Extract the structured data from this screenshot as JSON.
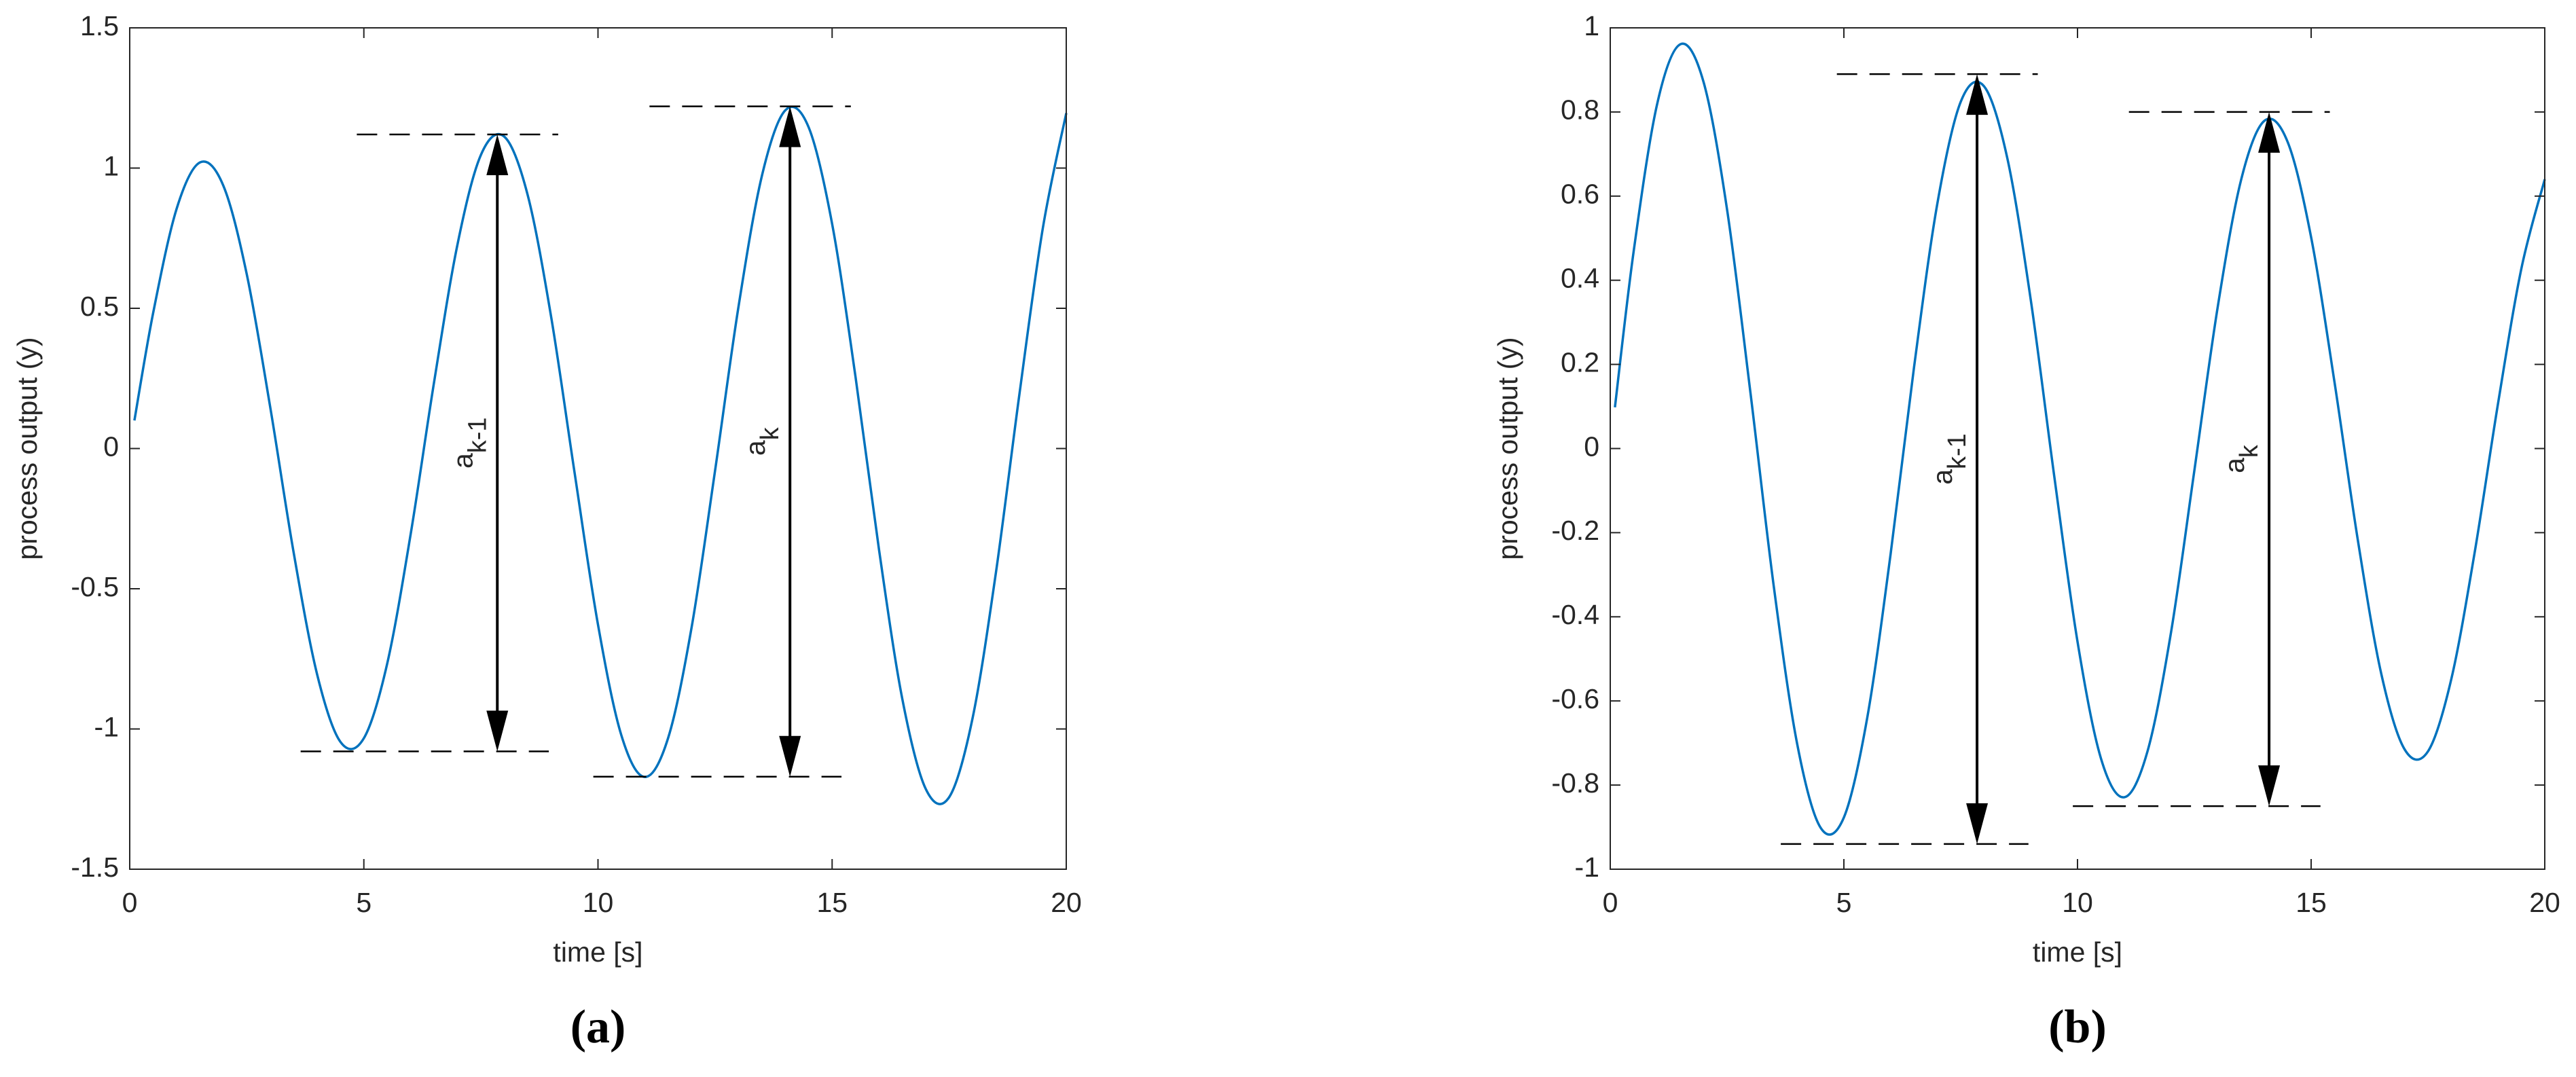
{
  "chart_data": [
    {
      "type": "line",
      "xlabel": "time [s]",
      "ylabel": "process output (y)",
      "caption": "(a)",
      "color": "#0072bd",
      "xlim": [
        0,
        20
      ],
      "ylim": [
        -1.5,
        1.5
      ],
      "xticks": [
        0,
        5,
        10,
        15,
        20
      ],
      "yticks": [
        -1.5,
        -1,
        -0.5,
        0,
        0.5,
        1,
        1.5
      ],
      "x": [
        0.1,
        0.5,
        1,
        1.5,
        2,
        2.5,
        3,
        3.5,
        4,
        4.5,
        5,
        5.5,
        6,
        6.5,
        7,
        7.5,
        8,
        8.5,
        9,
        9.5,
        10,
        10.5,
        11,
        11.5,
        12,
        12.5,
        13,
        13.5,
        14,
        14.5,
        15,
        15.5,
        16,
        16.5,
        17,
        17.5,
        18,
        18.5,
        19,
        19.5,
        20
      ],
      "values": [
        0.1,
        0.483,
        0.854,
        1.02,
        0.937,
        0.621,
        0.148,
        -0.37,
        -0.804,
        -1.046,
        -1.033,
        -0.766,
        -0.305,
        0.237,
        0.728,
        1.047,
        1.112,
        0.903,
        0.469,
        -0.086,
        -0.628,
        -1.023,
        -1.171,
        -1.031,
        -0.637,
        -0.079,
        0.505,
        0.972,
        1.206,
        1.145,
        0.801,
        0.255,
        -0.359,
        -0.894,
        -1.214,
        -1.243,
        -0.961,
        -0.44,
        0.194,
        0.786,
        1.196
      ],
      "annotations": [
        {
          "text": "a",
          "subscript": "k-1",
          "x": 7.85,
          "top": 1.12,
          "bottom": -1.08
        },
        {
          "text": "a",
          "subscript": "k",
          "x": 14.1,
          "top": 1.22,
          "bottom": -1.17
        }
      ]
    },
    {
      "type": "line",
      "xlabel": "time [s]",
      "ylabel": "process output (y)",
      "caption": "(b)",
      "color": "#0072bd",
      "xlim": [
        0,
        20
      ],
      "ylim": [
        -1,
        1
      ],
      "xticks": [
        0,
        5,
        10,
        15,
        20
      ],
      "yticks": [
        -1,
        -0.8,
        -0.6,
        -0.4,
        -0.2,
        0,
        0.2,
        0.4,
        0.6,
        0.8,
        1
      ],
      "x": [
        0.1,
        0.5,
        1,
        1.5,
        2,
        2.5,
        3,
        3.5,
        4,
        4.5,
        5,
        5.5,
        6,
        6.5,
        7,
        7.5,
        8,
        8.5,
        9,
        9.5,
        10,
        10.5,
        11,
        11.5,
        12,
        12.5,
        13,
        13.5,
        14,
        14.5,
        15,
        15.5,
        16,
        16.5,
        17,
        17.5,
        18,
        18.5,
        19,
        19.5,
        20
      ],
      "values": [
        0.098,
        0.468,
        0.817,
        0.961,
        0.87,
        0.568,
        0.133,
        -0.328,
        -0.702,
        -0.901,
        -0.877,
        -0.64,
        -0.251,
        0.192,
        0.582,
        0.824,
        0.861,
        0.689,
        0.353,
        -0.064,
        -0.459,
        -0.736,
        -0.829,
        -0.719,
        -0.438,
        -0.053,
        0.336,
        0.638,
        0.779,
        0.728,
        0.502,
        0.158,
        -0.218,
        -0.535,
        -0.715,
        -0.72,
        -0.548,
        -0.247,
        0.107,
        0.428,
        0.64
      ],
      "annotations": [
        {
          "text": "a",
          "subscript": "k-1",
          "x": 7.85,
          "top": 0.89,
          "bottom": -0.94
        },
        {
          "text": "a",
          "subscript": "k",
          "x": 14.1,
          "top": 0.8,
          "bottom": -0.85
        }
      ]
    }
  ]
}
